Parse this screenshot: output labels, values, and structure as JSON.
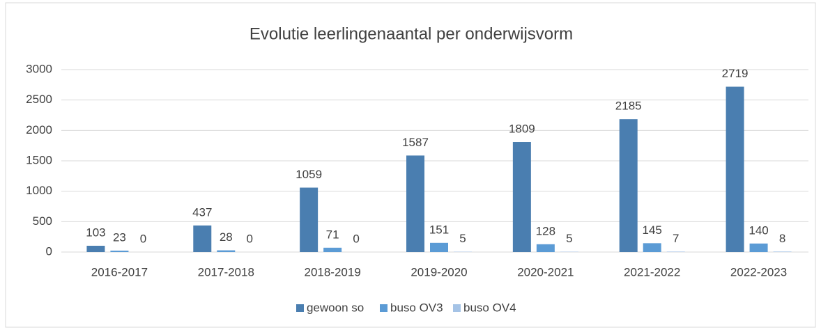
{
  "chart_data": {
    "type": "bar",
    "title": "Evolutie leerlingenaantal per onderwijsvorm",
    "categories": [
      "2016-2017",
      "2017-2018",
      "2018-2019",
      "2019-2020",
      "2020-2021",
      "2021-2022",
      "2022-2023"
    ],
    "series": [
      {
        "name": "gewoon so",
        "color": "#4a7eb0",
        "values": [
          103,
          437,
          1059,
          1587,
          1809,
          2185,
          2719
        ]
      },
      {
        "name": "buso OV3",
        "color": "#5b9bd5",
        "values": [
          23,
          28,
          71,
          151,
          128,
          145,
          140
        ]
      },
      {
        "name": "buso OV4",
        "color": "#a5c3e6",
        "values": [
          0,
          0,
          0,
          5,
          5,
          7,
          8
        ]
      }
    ],
    "ylim": [
      0,
      3000
    ],
    "yticks": [
      0,
      500,
      1000,
      1500,
      2000,
      2500,
      3000
    ],
    "grid": true,
    "legend": "bottom"
  }
}
